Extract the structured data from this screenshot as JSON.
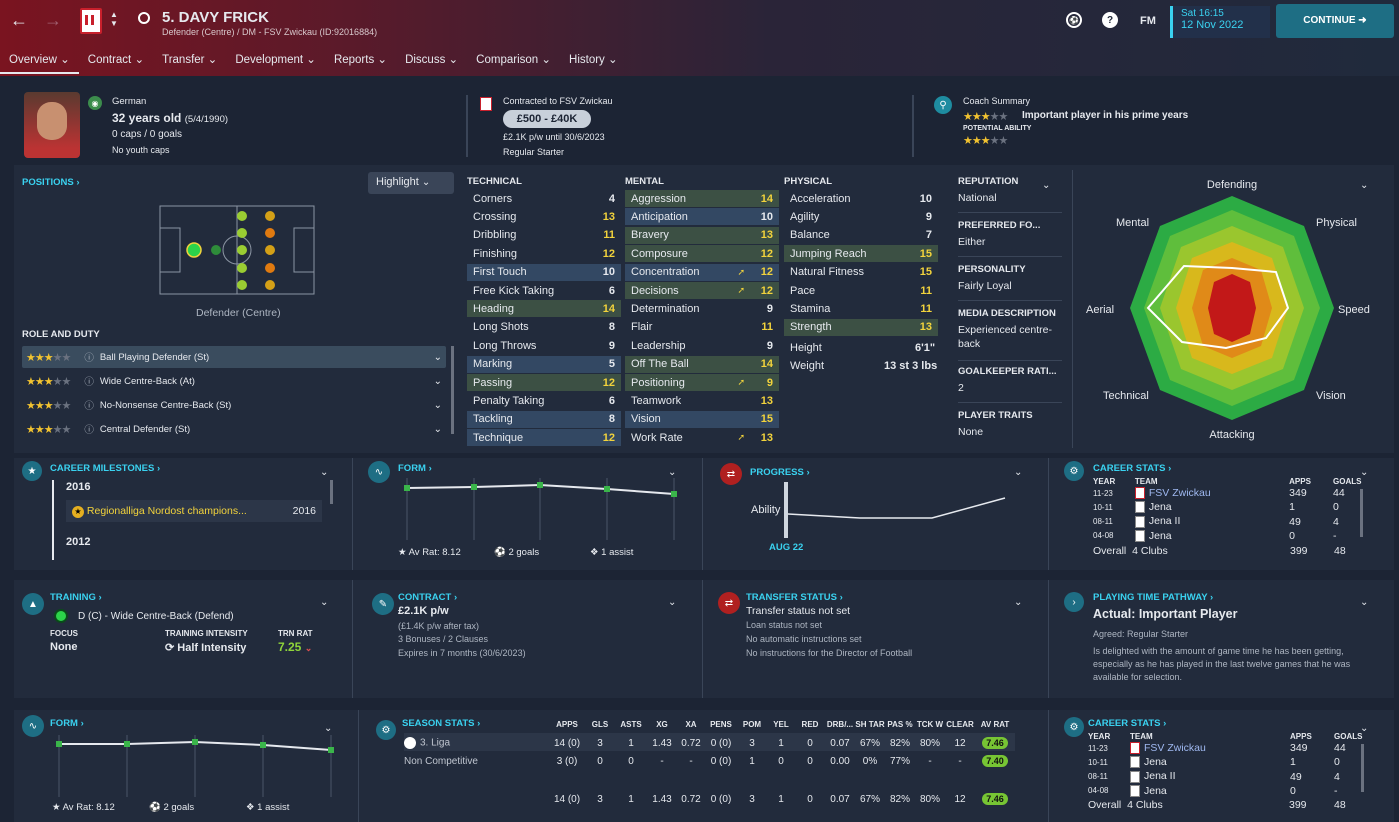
{
  "header": {
    "title": "5. DAVY FRICK",
    "subtitle": "Defender (Centre) / DM - FSV Zwickau (ID:92016884)",
    "day_time": "Sat 16:15",
    "date": "12 Nov 2022",
    "continue": "CONTINUE",
    "fm": "FM"
  },
  "menu": [
    "Overview",
    "Contract",
    "Transfer",
    "Development",
    "Reports",
    "Discuss",
    "Comparison",
    "History"
  ],
  "profile": {
    "nationality": "German",
    "age": "32 years old",
    "dob": "(5/4/1990)",
    "caps": "0 caps / 0 goals",
    "youth": "No youth caps"
  },
  "contract_top": {
    "label": "Contracted to FSV Zwickau",
    "value": "£500 - £40K",
    "wage": "£2.1K p/w until 30/6/2023",
    "status": "Regular Starter"
  },
  "coach": {
    "label": "Coach Summary",
    "summary": "Important player in his prime years",
    "potential_label": "POTENTIAL ABILITY"
  },
  "positions": {
    "title": "POSITIONS",
    "highlight": "Highlight",
    "pos_label": "Defender (Centre)"
  },
  "roles": {
    "title": "ROLE AND DUTY",
    "items": [
      "Ball Playing Defender (St)",
      "Wide Centre-Back (At)",
      "No-Nonsense Centre-Back (St)",
      "Central Defender (St)"
    ]
  },
  "technical": {
    "title": "TECHNICAL",
    "items": [
      [
        "Corners",
        "4"
      ],
      [
        "Crossing",
        "13"
      ],
      [
        "Dribbling",
        "11"
      ],
      [
        "Finishing",
        "12"
      ],
      [
        "First Touch",
        "10"
      ],
      [
        "Free Kick Taking",
        "6"
      ],
      [
        "Heading",
        "14"
      ],
      [
        "Long Shots",
        "8"
      ],
      [
        "Long Throws",
        "9"
      ],
      [
        "Marking",
        "5"
      ],
      [
        "Passing",
        "12"
      ],
      [
        "Penalty Taking",
        "6"
      ],
      [
        "Tackling",
        "8"
      ],
      [
        "Technique",
        "12"
      ]
    ]
  },
  "mental": {
    "title": "MENTAL",
    "items": [
      [
        "Aggression",
        "14"
      ],
      [
        "Anticipation",
        "10"
      ],
      [
        "Bravery",
        "13"
      ],
      [
        "Composure",
        "12"
      ],
      [
        "Concentration",
        "12"
      ],
      [
        "Decisions",
        "12"
      ],
      [
        "Determination",
        "9"
      ],
      [
        "Flair",
        "11"
      ],
      [
        "Leadership",
        "9"
      ],
      [
        "Off The Ball",
        "14"
      ],
      [
        "Positioning",
        "9"
      ],
      [
        "Teamwork",
        "13"
      ],
      [
        "Vision",
        "15"
      ],
      [
        "Work Rate",
        "13"
      ]
    ]
  },
  "physical": {
    "title": "PHYSICAL",
    "items": [
      [
        "Acceleration",
        "10"
      ],
      [
        "Agility",
        "9"
      ],
      [
        "Balance",
        "7"
      ],
      [
        "Jumping Reach",
        "15"
      ],
      [
        "Natural Fitness",
        "15"
      ],
      [
        "Pace",
        "11"
      ],
      [
        "Stamina",
        "11"
      ],
      [
        "Strength",
        "13"
      ]
    ],
    "height_label": "Height",
    "height": "6'1\"",
    "weight_label": "Weight",
    "weight": "13 st 3 lbs"
  },
  "info": [
    [
      "REPUTATION",
      "National"
    ],
    [
      "PREFERRED FO...",
      "Either"
    ],
    [
      "PERSONALITY",
      "Fairly Loyal"
    ],
    [
      "MEDIA DESCRIPTION",
      "Experienced centre-back"
    ],
    [
      "GOALKEEPER RATI...",
      "2"
    ],
    [
      "PLAYER TRAITS",
      "None"
    ]
  ],
  "radar": {
    "labels": [
      "Defending",
      "Physical",
      "Speed",
      "Vision",
      "Attacking",
      "Technical",
      "Aerial",
      "Mental"
    ]
  },
  "milestones": {
    "title": "CAREER MILESTONES",
    "y1": "2016",
    "item": "Regionalliga Nordost champions...",
    "item_year": "2016",
    "y2": "2012"
  },
  "form1": {
    "title": "FORM",
    "av": "Av Rat: 8.12",
    "goals": "2 goals",
    "assist": "1 assist"
  },
  "progress": {
    "title": "PROGRESS",
    "ability": "Ability",
    "date": "AUG 22"
  },
  "career1": {
    "title": "CAREER STATS",
    "h": [
      "YEAR",
      "TEAM",
      "APPS",
      "GOALS"
    ],
    "rows": [
      [
        "11-23",
        "FSV Zwickau",
        "349",
        "44"
      ],
      [
        "10-11",
        "Jena",
        "1",
        "0"
      ],
      [
        "08-11",
        "Jena II",
        "49",
        "4"
      ],
      [
        "04-08",
        "Jena",
        "0",
        "-"
      ]
    ],
    "overall": "Overall",
    "clubs": "4 Clubs",
    "tapps": "399",
    "tgoals": "48"
  },
  "training": {
    "title": "TRAINING",
    "role": "D (C) - Wide Centre-Back (Defend)",
    "focus_l": "FOCUS",
    "focus": "None",
    "int_l": "TRAINING INTENSITY",
    "int": "Half Intensity",
    "rat_l": "TRN RAT",
    "rat": "7.25"
  },
  "contract": {
    "title": "CONTRACT",
    "wage": "£2.1K p/w",
    "tax": "(£1.4K p/w after tax)",
    "bonus": "3 Bonuses / 2 Clauses",
    "expires": "Expires in 7 months  (30/6/2023)"
  },
  "transfer": {
    "title": "TRANSFER STATUS",
    "status": "Transfer status not set",
    "l1": "Loan status not set",
    "l2": "No automatic instructions set",
    "l3": "No instructions for the Director of Football"
  },
  "pathway": {
    "title": "PLAYING TIME PATHWAY",
    "actual": "Actual: Important Player",
    "agreed": "Agreed:  Regular Starter",
    "text": "Is delighted with the amount of game time he has been getting, especially as he has played in the last twelve games that he was available for selection."
  },
  "form2": {
    "title": "FORM",
    "av": "Av Rat: 8.12",
    "goals": "2 goals",
    "assist": "1 assist"
  },
  "season": {
    "title": "SEASON STATS",
    "h": [
      "APPS",
      "GLS",
      "ASTS",
      "XG",
      "XA",
      "PENS",
      "POM",
      "YEL",
      "RED",
      "DRB/...",
      "SH TAR",
      "PAS %",
      "TCK W",
      "CLEAR",
      "AV RAT"
    ],
    "rows": [
      [
        "3. Liga",
        "14 (0)",
        "3",
        "1",
        "1.43",
        "0.72",
        "0 (0)",
        "3",
        "1",
        "0",
        "0.07",
        "67%",
        "82%",
        "80%",
        "12",
        "7.46"
      ],
      [
        "Non Competitive",
        "3 (0)",
        "0",
        "0",
        "-",
        "-",
        "0 (0)",
        "1",
        "0",
        "0",
        "0.00",
        "0%",
        "77%",
        "-",
        "-",
        "7.40"
      ],
      [
        "",
        "14 (0)",
        "3",
        "1",
        "1.43",
        "0.72",
        "0 (0)",
        "3",
        "1",
        "0",
        "0.07",
        "67%",
        "82%",
        "80%",
        "12",
        "7.46"
      ]
    ]
  },
  "career2": {
    "title": "CAREER STATS",
    "h": [
      "YEAR",
      "TEAM",
      "APPS",
      "GOALS"
    ],
    "rows": [
      [
        "11-23",
        "FSV Zwickau",
        "349",
        "44"
      ],
      [
        "10-11",
        "Jena",
        "1",
        "0"
      ],
      [
        "08-11",
        "Jena II",
        "49",
        "4"
      ],
      [
        "04-08",
        "Jena",
        "0",
        "-"
      ]
    ],
    "overall": "Overall",
    "clubs": "4 Clubs",
    "tapps": "399",
    "tgoals": "48"
  }
}
